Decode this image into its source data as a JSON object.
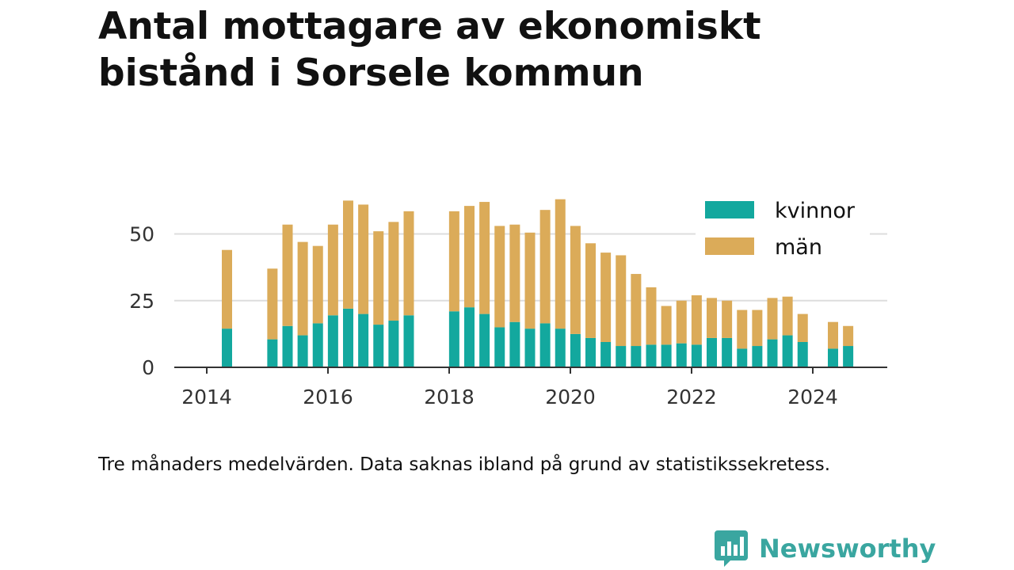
{
  "header": {
    "title": "Antal mottagare av ekonomiskt bistånd i Sorsele kommun"
  },
  "footer": {
    "note": "Tre månaders medelvärden. Data saknas ibland på grund av statistikssekretess.",
    "brand": "Newsworthy"
  },
  "colors": {
    "kvinnor": "#13a89e",
    "man": "#dbab59",
    "grid": "#dddddd",
    "axis": "#333333",
    "brand": "#3aa6a0"
  },
  "chart_data": {
    "type": "bar",
    "stacked": true,
    "title": "Antal mottagare av ekonomiskt bistånd i Sorsele kommun",
    "xlabel": "",
    "ylabel": "",
    "x_ticks": [
      "2014",
      "2016",
      "2018",
      "2020",
      "2022",
      "2024"
    ],
    "y_ticks": [
      "0",
      "25",
      "50"
    ],
    "ylim": [
      0,
      65
    ],
    "grid": true,
    "legend_position": "top-right",
    "x": [
      "2014-05",
      "2015-02",
      "2015-05",
      "2015-08",
      "2015-11",
      "2016-02",
      "2016-05",
      "2016-08",
      "2016-11",
      "2017-02",
      "2017-05",
      "2018-02",
      "2018-05",
      "2018-08",
      "2018-11",
      "2019-02",
      "2019-05",
      "2019-08",
      "2019-11",
      "2020-02",
      "2020-05",
      "2020-08",
      "2020-11",
      "2021-02",
      "2021-05",
      "2021-08",
      "2021-11",
      "2022-02",
      "2022-05",
      "2022-08",
      "2022-11",
      "2023-02",
      "2023-05",
      "2023-08",
      "2023-11",
      "2024-05",
      "2024-08"
    ],
    "series": [
      {
        "name": "kvinnor",
        "values": [
          14.5,
          10.5,
          15.5,
          12,
          16.5,
          19.5,
          22,
          20,
          16,
          17.5,
          19.5,
          21,
          22.5,
          20,
          15,
          17,
          14.5,
          16.5,
          14.5,
          12.5,
          11,
          9.5,
          8,
          8,
          8.5,
          8.5,
          9,
          8.5,
          11,
          11,
          7,
          8,
          10.5,
          12,
          9.5,
          7,
          8
        ]
      },
      {
        "name": "män",
        "values": [
          29.5,
          26.5,
          38,
          35,
          29,
          34,
          40.5,
          41,
          35,
          37,
          39,
          37.5,
          38,
          42,
          38,
          36.5,
          36,
          42.5,
          48.5,
          40.5,
          35.5,
          33.5,
          34,
          27,
          21.5,
          14.5,
          16,
          18.5,
          15,
          14,
          14.5,
          13.5,
          15.5,
          14.5,
          10.5,
          10,
          7.5
        ]
      }
    ]
  }
}
